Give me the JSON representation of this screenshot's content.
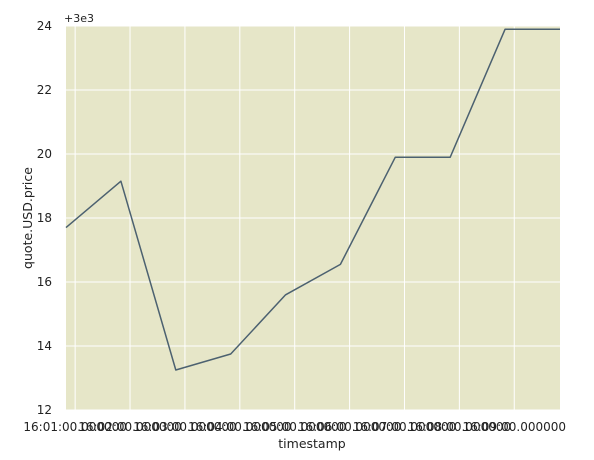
{
  "chart_data": {
    "type": "line",
    "title": "",
    "xlabel": "timestamp",
    "ylabel": "quote.USD.price",
    "y_offset_label": "+3e3",
    "x_tick_labels": [
      "16:01:00.000000",
      "16:02:00.000000",
      "16:03:00.000000",
      "16:04:00.000000",
      "16:05:00.000000",
      "16:06:00.000000",
      "16:07:00.000000",
      "16:08:00.000000",
      "16:09:00.000000"
    ],
    "y_tick_labels": [
      "12",
      "14",
      "16",
      "18",
      "20",
      "22",
      "24"
    ],
    "ylim": [
      3012,
      3024
    ],
    "xlim": [
      "16:00:50",
      "16:09:50"
    ],
    "grid": true,
    "series": [
      {
        "x": [
          "16:00:50",
          "16:01:50",
          "16:02:50",
          "16:03:50",
          "16:04:50",
          "16:05:50",
          "16:06:50",
          "16:07:50",
          "16:08:50",
          "16:09:50"
        ],
        "values": [
          3017.7,
          3019.15,
          3013.25,
          3013.75,
          3015.6,
          3016.55,
          3019.9,
          3019.9,
          3023.9,
          3023.9
        ]
      }
    ],
    "colors": {
      "plot_background": "#e6e6c8",
      "grid": "#ffffff",
      "line": "#4c6170",
      "text": "#222222"
    }
  }
}
